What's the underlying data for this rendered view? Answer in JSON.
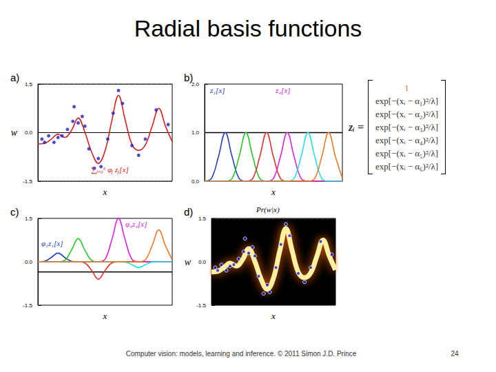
{
  "title": "Radial basis functions",
  "footer": "Computer vision: models, learning and inference.  © 2011 Simon J.D. Prince",
  "page": "24",
  "equation": {
    "lhs": "zᵢ =",
    "rows": [
      "1",
      "exp[−(xᵢ − α₁)²/λ]",
      "exp[−(xᵢ − α₂)²/λ]",
      "exp[−(xᵢ − α₃)²/λ]",
      "exp[−(xᵢ − α₄)²/λ]",
      "exp[−(xᵢ − α₅)²/λ]",
      "exp[−(xᵢ − α₆)²/λ]"
    ]
  },
  "chart_data": [
    {
      "type": "line",
      "title": "a)",
      "xlabel": "x",
      "ylabel": "w",
      "annotations": [
        {
          "text": "∑ⱼ₌₀⁶ φⱼ zⱼ[x]",
          "color": "#d62020"
        }
      ],
      "x": [
        0,
        0.05,
        0.1,
        0.15,
        0.2,
        0.25,
        0.3,
        0.35,
        0.4,
        0.45,
        0.5,
        0.55,
        0.6,
        0.65,
        0.7,
        0.75,
        0.8,
        0.85,
        0.9,
        0.95,
        1
      ],
      "xlim": [
        0,
        1
      ],
      "ylim": [
        -1.5,
        1.5
      ],
      "yticks": [
        -1.5,
        {
          "value": 0,
          "label": "0.0"
        },
        1.5
      ],
      "grid": true,
      "tick_labels": "y",
      "series": [
        {
          "type": "line",
          "color": "#d62020",
          "line_style": "solid",
          "values": [
            -0.35,
            -0.33,
            -0.2,
            -0.05,
            -0.15,
            0.07,
            0.45,
            0.01,
            -0.6,
            -0.95,
            -0.56,
            0.36,
            1.15,
            0.39,
            -0.36,
            -0.55,
            -0.38,
            0.19,
            0.75,
            0.2,
            -0.28
          ]
        },
        {
          "type": "scatter",
          "color": "#1f1fbf",
          "marker": "circle",
          "x": [
            0.03,
            0.05,
            0.08,
            0.12,
            0.15,
            0.18,
            0.22,
            0.26,
            0.27,
            0.3,
            0.33,
            0.35,
            0.38,
            0.42,
            0.45,
            0.47,
            0.52,
            0.56,
            0.6,
            0.63,
            0.7,
            0.75,
            0.8,
            0.88,
            0.97
          ],
          "values": [
            -0.2,
            -0.3,
            -0.1,
            -0.3,
            -0.15,
            -0.1,
            0.1,
            0.35,
            0.8,
            0.3,
            0.5,
            0.2,
            -0.5,
            -1.1,
            -0.8,
            -1.05,
            -0.2,
            0.6,
            1.3,
            0.9,
            -0.4,
            -0.7,
            -0.2,
            0.7,
            0.25
          ]
        }
      ]
    },
    {
      "type": "line",
      "title": "b)",
      "xlabel": "x",
      "annotations": [
        {
          "text": "z₁[x]",
          "color": "#1f3fbf"
        },
        {
          "text": "z₄[x]",
          "color": "#d020d0"
        }
      ],
      "x": [
        0,
        0.05,
        0.1,
        0.15,
        0.2,
        0.25,
        0.3,
        0.35,
        0.4,
        0.45,
        0.5,
        0.55,
        0.6,
        0.65,
        0.7,
        0.75,
        0.8,
        0.85,
        0.9,
        0.95,
        1
      ],
      "xlim": [
        0,
        1
      ],
      "ylim": [
        0,
        2
      ],
      "yticks": [
        {
          "value": 0,
          "label": "0.0"
        },
        {
          "value": 1,
          "label": "1.0"
        },
        {
          "value": 2,
          "label": "2.0"
        }
      ],
      "grid": false,
      "tick_labels": "y",
      "series": [
        {
          "color": "#000000",
          "values": [
            1,
            1,
            1,
            1,
            1,
            1,
            1,
            1,
            1,
            1,
            1,
            1,
            1,
            1,
            1,
            1,
            1,
            1,
            1,
            1,
            1
          ]
        },
        {
          "color": "#1f3fbf",
          "values": [
            0,
            0.06,
            0.5,
            1,
            0.5,
            0.06,
            0,
            0,
            0,
            0,
            0,
            0,
            0,
            0,
            0,
            0,
            0,
            0,
            0,
            0,
            0
          ]
        },
        {
          "color": "#22c822",
          "values": [
            0,
            0,
            0,
            0,
            0.06,
            0.5,
            1,
            0.5,
            0.06,
            0,
            0,
            0,
            0,
            0,
            0,
            0,
            0,
            0,
            0,
            0,
            0
          ]
        },
        {
          "color": "#e0302a",
          "values": [
            0,
            0,
            0,
            0,
            0,
            0,
            0,
            0.06,
            0.5,
            1,
            0.5,
            0.06,
            0,
            0,
            0,
            0,
            0,
            0,
            0,
            0,
            0
          ]
        },
        {
          "color": "#e020e0",
          "values": [
            0,
            0,
            0,
            0,
            0,
            0,
            0,
            0,
            0,
            0,
            0.06,
            0.5,
            1,
            0.5,
            0.06,
            0,
            0,
            0,
            0,
            0,
            0
          ]
        },
        {
          "color": "#20e0e0",
          "values": [
            0,
            0,
            0,
            0,
            0,
            0,
            0,
            0,
            0,
            0,
            0,
            0,
            0,
            0.06,
            0.5,
            1,
            0.5,
            0.06,
            0,
            0,
            0
          ]
        },
        {
          "color": "#f07820",
          "values": [
            0,
            0,
            0,
            0,
            0,
            0,
            0,
            0,
            0,
            0,
            0,
            0,
            0,
            0,
            0,
            0,
            0.06,
            0.5,
            1,
            0.5,
            0.06
          ]
        }
      ]
    },
    {
      "type": "line",
      "title": "c)",
      "xlabel": "x",
      "annotations": [
        {
          "text": "φ₁z₁[x]",
          "color": "#1f3fbf"
        },
        {
          "text": "φ₄z₄[x]",
          "color": "#d020d0"
        }
      ],
      "x": [
        0,
        0.05,
        0.1,
        0.15,
        0.2,
        0.25,
        0.3,
        0.35,
        0.4,
        0.45,
        0.5,
        0.55,
        0.6,
        0.65,
        0.7,
        0.75,
        0.8,
        0.85,
        0.9,
        0.95,
        1
      ],
      "xlim": [
        0,
        1
      ],
      "ylim": [
        -1.5,
        1.5
      ],
      "yticks": [
        -1.5,
        {
          "value": 0,
          "label": "0.0"
        },
        1.5
      ],
      "grid": false,
      "tick_labels": "y",
      "series": [
        {
          "color": "#000000",
          "values": [
            -0.35,
            -0.35,
            -0.35,
            -0.35,
            -0.35,
            -0.35,
            -0.35,
            -0.35,
            -0.35,
            -0.35,
            -0.35,
            -0.35,
            -0.35,
            -0.35,
            -0.35,
            -0.35,
            -0.35,
            -0.35,
            -0.35,
            -0.35,
            -0.35
          ]
        },
        {
          "color": "#1f3fbf",
          "values": [
            0,
            0.02,
            0.15,
            0.3,
            0.15,
            0.02,
            0,
            0,
            0,
            0,
            0,
            0,
            0,
            0,
            0,
            0,
            0,
            0,
            0,
            0,
            0
          ]
        },
        {
          "color": "#22c822",
          "values": [
            0,
            0,
            0,
            0,
            0.05,
            0.4,
            0.8,
            0.4,
            0.05,
            0,
            0,
            0,
            0,
            0,
            0,
            0,
            0,
            0,
            0,
            0,
            0
          ]
        },
        {
          "color": "#e0302a",
          "values": [
            0,
            0,
            0,
            0,
            0,
            0,
            0,
            -0.04,
            -0.3,
            -0.6,
            -0.3,
            -0.04,
            0,
            0,
            0,
            0,
            0,
            0,
            0,
            0,
            0
          ]
        },
        {
          "color": "#e020e0",
          "values": [
            0,
            0,
            0,
            0,
            0,
            0,
            0,
            0,
            0,
            0,
            0.09,
            0.75,
            1.5,
            0.75,
            0.09,
            0,
            0,
            0,
            0,
            0,
            0
          ]
        },
        {
          "color": "#20e0e0",
          "values": [
            0,
            0,
            0,
            0,
            0,
            0,
            0,
            0,
            0,
            0,
            0,
            0,
            0,
            -0.01,
            -0.1,
            -0.2,
            -0.1,
            -0.01,
            0,
            0,
            0
          ]
        },
        {
          "color": "#f07820",
          "values": [
            0,
            0,
            0,
            0,
            0,
            0,
            0,
            0,
            0,
            0,
            0,
            0,
            0,
            0,
            0,
            0,
            0.07,
            0.55,
            1.1,
            0.55,
            0.07
          ]
        }
      ]
    },
    {
      "type": "line",
      "title": "d)",
      "xlabel": "x",
      "ylabel": "w",
      "annotations": [
        {
          "text": "Pr(w|x)",
          "color": "#000000"
        }
      ],
      "x": [
        0,
        0.05,
        0.1,
        0.15,
        0.2,
        0.25,
        0.3,
        0.35,
        0.4,
        0.45,
        0.5,
        0.55,
        0.6,
        0.65,
        0.7,
        0.75,
        0.8,
        0.85,
        0.9,
        0.95,
        1
      ],
      "xlim": [
        0,
        1
      ],
      "ylim": [
        -1.5,
        1.5
      ],
      "yticks": [
        -1.5,
        {
          "value": 0,
          "label": "0.0"
        },
        1.5
      ],
      "grid": true,
      "tick_labels": "y",
      "series": [
        {
          "type": "line",
          "color": "#fff0a0",
          "line_style": "glow",
          "values": [
            -0.35,
            -0.33,
            -0.2,
            -0.05,
            -0.15,
            0.07,
            0.45,
            0.01,
            -0.6,
            -0.95,
            -0.56,
            0.36,
            1.15,
            0.39,
            -0.36,
            -0.55,
            -0.38,
            0.19,
            0.75,
            0.2,
            -0.28
          ]
        },
        {
          "type": "scatter",
          "color": "#1f1fbf",
          "marker": "circle",
          "x": [
            0.03,
            0.05,
            0.08,
            0.12,
            0.15,
            0.18,
            0.22,
            0.26,
            0.27,
            0.3,
            0.33,
            0.35,
            0.38,
            0.42,
            0.45,
            0.47,
            0.52,
            0.56,
            0.6,
            0.63,
            0.7,
            0.75,
            0.8,
            0.88,
            0.97
          ],
          "values": [
            -0.2,
            -0.3,
            -0.1,
            -0.3,
            -0.15,
            -0.1,
            0.1,
            0.35,
            0.8,
            0.3,
            0.5,
            0.2,
            -0.5,
            -1.1,
            -0.8,
            -1.05,
            -0.2,
            0.6,
            1.3,
            0.9,
            -0.4,
            -0.7,
            -0.2,
            0.7,
            0.25
          ]
        }
      ]
    }
  ]
}
